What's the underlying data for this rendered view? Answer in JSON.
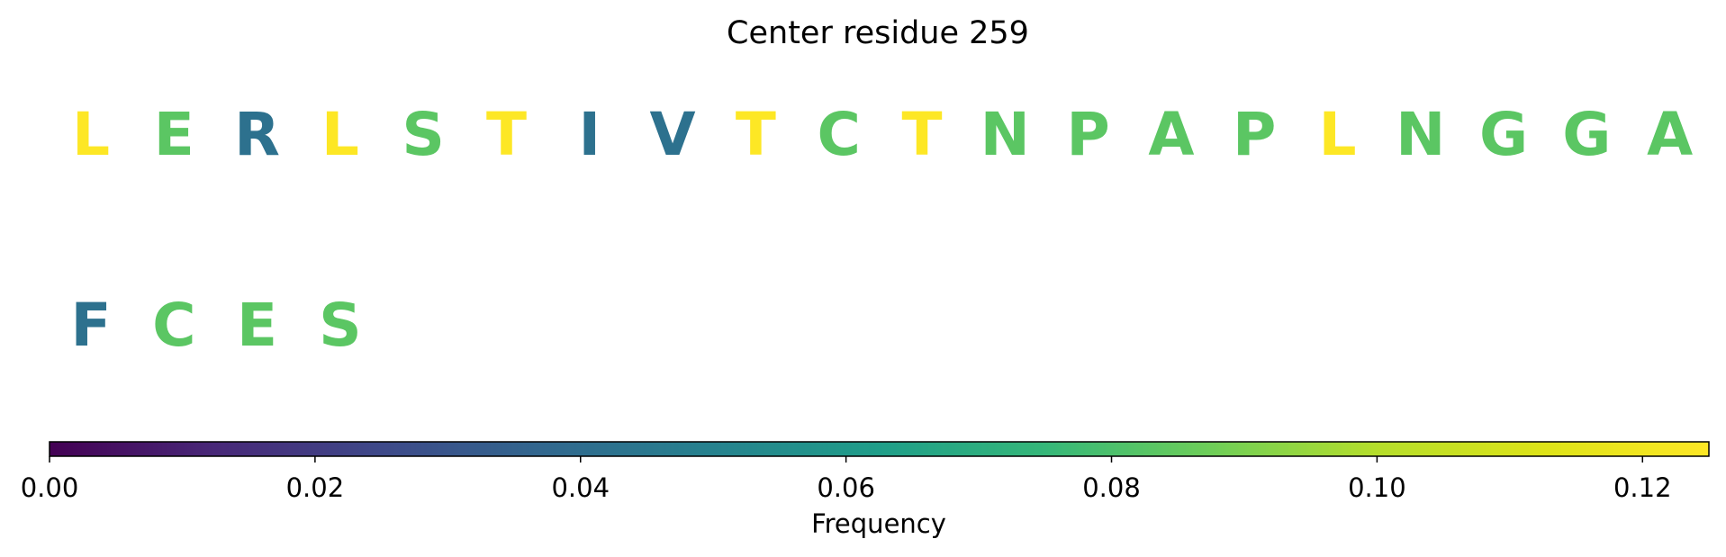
{
  "chart_data": {
    "type": "sequence-colormap",
    "title": "Center residue 259",
    "residues": [
      {
        "letter": "L",
        "value": 0.125
      },
      {
        "letter": "E",
        "value": 0.0833
      },
      {
        "letter": "R",
        "value": 0.0417
      },
      {
        "letter": "L",
        "value": 0.125
      },
      {
        "letter": "S",
        "value": 0.0833
      },
      {
        "letter": "T",
        "value": 0.125
      },
      {
        "letter": "I",
        "value": 0.0417
      },
      {
        "letter": "V",
        "value": 0.0417
      },
      {
        "letter": "T",
        "value": 0.125
      },
      {
        "letter": "C",
        "value": 0.0833
      },
      {
        "letter": "T",
        "value": 0.125
      },
      {
        "letter": "N",
        "value": 0.0833
      },
      {
        "letter": "P",
        "value": 0.0833
      },
      {
        "letter": "A",
        "value": 0.0833
      },
      {
        "letter": "P",
        "value": 0.0833
      },
      {
        "letter": "L",
        "value": 0.125
      },
      {
        "letter": "N",
        "value": 0.0833
      },
      {
        "letter": "G",
        "value": 0.0833
      },
      {
        "letter": "G",
        "value": 0.0833
      },
      {
        "letter": "A",
        "value": 0.0833
      },
      {
        "letter": "F",
        "value": 0.0417
      },
      {
        "letter": "C",
        "value": 0.0833
      },
      {
        "letter": "E",
        "value": 0.0833
      },
      {
        "letter": "S",
        "value": 0.0833
      }
    ],
    "colorbar": {
      "colormap": "viridis",
      "label": "Frequency",
      "range": [
        0,
        0.125
      ],
      "ticks": [
        0.0,
        0.02,
        0.04,
        0.06,
        0.08,
        0.1,
        0.12
      ],
      "tick_labels": [
        "0.00",
        "0.02",
        "0.04",
        "0.06",
        "0.08",
        "0.10",
        "0.12"
      ]
    }
  }
}
